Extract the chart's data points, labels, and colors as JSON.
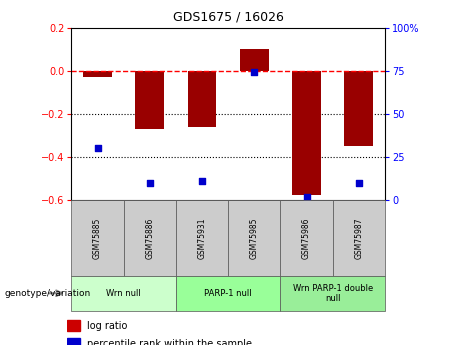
{
  "title": "GDS1675 / 16026",
  "samples": [
    "GSM75885",
    "GSM75886",
    "GSM75931",
    "GSM75985",
    "GSM75986",
    "GSM75987"
  ],
  "log_ratio": [
    -0.03,
    -0.27,
    -0.26,
    0.1,
    -0.575,
    -0.35
  ],
  "percentile": [
    30,
    10,
    11,
    74,
    2,
    10
  ],
  "bar_color": "#990000",
  "dot_color": "#0000cc",
  "ylim_left": [
    -0.6,
    0.2
  ],
  "ylim_right": [
    0,
    100
  ],
  "yticks_left": [
    -0.6,
    -0.4,
    -0.2,
    0.0,
    0.2
  ],
  "yticks_right": [
    0,
    25,
    50,
    75,
    100
  ],
  "ytick_labels_right": [
    "0",
    "25",
    "50",
    "75",
    "100%"
  ],
  "hline_dotted": [
    -0.2,
    -0.4
  ],
  "groups": [
    {
      "label": "Wrn null",
      "start": 0,
      "end": 2,
      "color": "#ccffcc"
    },
    {
      "label": "PARP-1 null",
      "start": 2,
      "end": 4,
      "color": "#99ff99"
    },
    {
      "label": "Wrn PARP-1 double\nnull",
      "start": 4,
      "end": 6,
      "color": "#99ee99"
    }
  ],
  "legend_items": [
    {
      "label": "log ratio",
      "color": "#cc0000"
    },
    {
      "label": "percentile rank within the sample",
      "color": "#0000cc"
    }
  ],
  "genotype_label": "genotype/variation",
  "bar_width": 0.55,
  "sample_box_color": "#cccccc",
  "plot_bg": "#ffffff"
}
